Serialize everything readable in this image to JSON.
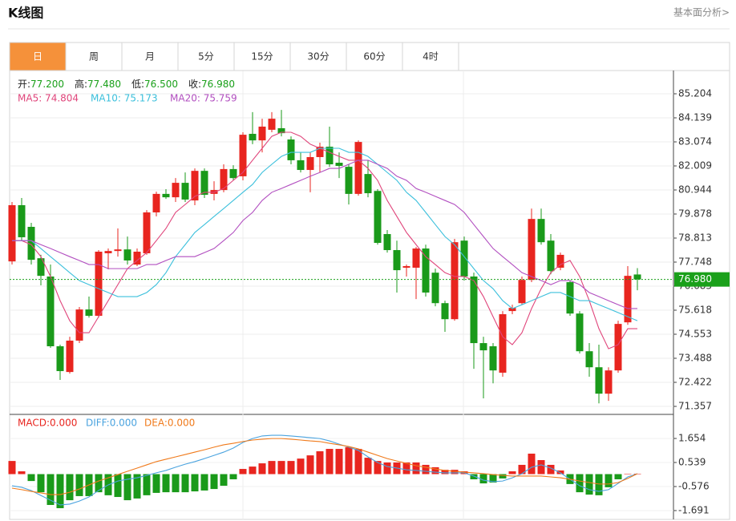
{
  "header": {
    "title": "K线图",
    "link": "基本面分析>"
  },
  "tabs": [
    "日",
    "周",
    "月",
    "5分",
    "15分",
    "30分",
    "60分",
    "4时"
  ],
  "active_tab": 0,
  "chart_data": [
    {
      "type": "candlestick",
      "info": [
        {
          "label": "开:",
          "value": "77.200"
        },
        {
          "label": "高:",
          "value": "77.480"
        },
        {
          "label": "低:",
          "value": "76.500"
        },
        {
          "label": "收:",
          "value": "76.980"
        }
      ],
      "up_color": "#e8251f",
      "down_color": "#1a9a1a",
      "open": [
        77.78,
        80.27,
        79.31,
        77.92,
        77.11,
        74.02,
        72.88,
        74.27,
        75.65,
        75.37,
        78.14,
        78.24,
        78.31,
        77.64,
        78.14,
        79.95,
        80.77,
        80.62,
        81.26,
        80.48,
        81.79,
        80.77,
        80.94,
        81.87,
        81.55,
        83.43,
        83.14,
        83.61,
        83.68,
        83.18,
        82.26,
        81.83,
        82.4,
        82.86,
        82.15,
        81.97,
        80.77,
        81.65,
        80.9,
        78.99,
        78.28,
        77.5,
        77.5,
        78.35,
        77.28,
        75.93,
        75.22,
        78.7,
        77.11,
        74.16,
        74.02,
        72.85,
        75.58,
        75.93,
        76.96,
        79.66,
        78.7,
        77.5,
        76.86,
        75.47,
        73.8,
        73.09,
        71.92,
        72.95,
        75.08,
        77.2
      ],
      "high": [
        80.41,
        80.59,
        79.49,
        78.07,
        77.64,
        74.09,
        74.44,
        75.76,
        76.22,
        78.28,
        78.35,
        79.24,
        78.88,
        78.35,
        80.05,
        80.87,
        80.98,
        81.47,
        81.72,
        81.9,
        81.9,
        81.33,
        82.08,
        82.04,
        83.5,
        84.39,
        84.1,
        84.39,
        84.49,
        83.32,
        82.61,
        82.61,
        83.04,
        83.75,
        82.61,
        82.08,
        83.14,
        82.26,
        80.98,
        79.17,
        78.7,
        77.64,
        78.42,
        78.52,
        77.46,
        76.04,
        78.78,
        78.88,
        77.28,
        74.44,
        74.16,
        75.58,
        75.86,
        77.11,
        80.12,
        80.12,
        78.99,
        78.17,
        76.93,
        75.58,
        74.16,
        74.09,
        73.09,
        75.15,
        77.57,
        77.48
      ],
      "low": [
        77.64,
        78.7,
        77.64,
        76.72,
        73.95,
        72.53,
        72.81,
        74.16,
        75.29,
        75.29,
        77.43,
        77.99,
        77.64,
        77.57,
        78.07,
        79.77,
        80.55,
        80.41,
        80.41,
        80.27,
        80.59,
        80.48,
        80.84,
        81.37,
        81.37,
        82.97,
        82.61,
        83.5,
        83.32,
        82.08,
        81.72,
        80.84,
        81.72,
        81.97,
        81.47,
        80.3,
        80.69,
        80.62,
        78.52,
        78.17,
        76.4,
        77.11,
        76.11,
        76.22,
        75.79,
        74.66,
        75.15,
        76.93,
        73.02,
        71.71,
        72.38,
        72.67,
        75.44,
        75.86,
        76.86,
        78.52,
        77.21,
        77.39,
        75.37,
        73.7,
        72.67,
        71.49,
        71.6,
        72.85,
        74.97,
        76.5
      ],
      "close": [
        80.27,
        78.85,
        77.85,
        77.14,
        74.02,
        72.92,
        74.27,
        75.65,
        75.37,
        78.21,
        78.24,
        78.31,
        77.82,
        78.21,
        79.95,
        80.77,
        80.62,
        81.26,
        80.52,
        81.79,
        80.73,
        80.94,
        81.87,
        81.47,
        83.39,
        83.14,
        83.75,
        84.1,
        83.46,
        82.26,
        81.83,
        82.4,
        82.86,
        82.08,
        82.01,
        80.77,
        83.07,
        80.8,
        78.6,
        78.28,
        77.39,
        77.57,
        78.35,
        76.4,
        75.93,
        75.22,
        78.63,
        77.11,
        74.16,
        73.84,
        72.95,
        75.44,
        75.72,
        76.96,
        79.66,
        78.63,
        77.35,
        78.07,
        75.47,
        73.8,
        73.09,
        71.92,
        72.95,
        75.01,
        77.14,
        76.98
      ],
      "ma": [
        {
          "label": "MA5: 74.804",
          "color": "#e0457b",
          "values": [
            78.7,
            78.7,
            78.52,
            77.99,
            77.11,
            76.04,
            75.15,
            74.62,
            74.62,
            75.33,
            76.04,
            76.75,
            77.46,
            77.82,
            78.17,
            78.7,
            79.24,
            79.95,
            80.3,
            80.66,
            80.84,
            80.84,
            81.01,
            81.37,
            81.72,
            82.26,
            82.79,
            83.32,
            83.5,
            83.5,
            83.32,
            82.97,
            82.79,
            82.61,
            82.43,
            82.26,
            82.26,
            81.9,
            81.37,
            80.48,
            79.77,
            79.06,
            78.52,
            77.99,
            77.64,
            77.28,
            77.11,
            77.11,
            76.93,
            76.22,
            75.33,
            74.44,
            74.09,
            74.62,
            75.69,
            76.57,
            77.28,
            77.64,
            77.82,
            77.11,
            76.04,
            74.8,
            73.91,
            74.09,
            74.8,
            74.8
          ]
        },
        {
          "label": "MA10: 75.173",
          "color": "#3cc0dc",
          "values": [
            78.7,
            78.7,
            78.7,
            78.35,
            77.99,
            77.64,
            77.28,
            76.93,
            76.75,
            76.57,
            76.4,
            76.22,
            76.22,
            76.22,
            76.4,
            76.75,
            77.28,
            77.99,
            78.52,
            79.06,
            79.41,
            79.77,
            80.12,
            80.48,
            80.84,
            81.19,
            81.72,
            82.08,
            82.43,
            82.61,
            82.61,
            82.61,
            82.79,
            82.79,
            82.79,
            82.61,
            82.61,
            82.43,
            82.08,
            81.72,
            81.37,
            80.84,
            80.48,
            79.95,
            79.41,
            78.88,
            78.52,
            77.99,
            77.46,
            76.93,
            76.57,
            76.04,
            75.69,
            75.86,
            76.04,
            76.22,
            76.4,
            76.4,
            76.22,
            76.04,
            76.04,
            75.86,
            75.69,
            75.51,
            75.33,
            75.15
          ]
        },
        {
          "label": "MA20: 75.759",
          "color": "#b24fc0",
          "values": [
            78.7,
            78.7,
            78.7,
            78.52,
            78.35,
            78.17,
            77.99,
            77.82,
            77.64,
            77.64,
            77.46,
            77.46,
            77.46,
            77.46,
            77.64,
            77.64,
            77.82,
            77.99,
            77.99,
            77.99,
            78.17,
            78.35,
            78.7,
            79.06,
            79.59,
            79.95,
            80.48,
            80.84,
            81.01,
            81.19,
            81.37,
            81.55,
            81.72,
            81.9,
            81.9,
            82.08,
            82.26,
            82.26,
            82.08,
            81.9,
            81.55,
            81.37,
            81.01,
            80.84,
            80.66,
            80.48,
            80.3,
            79.95,
            79.41,
            78.88,
            78.35,
            77.99,
            77.64,
            77.28,
            77.11,
            76.93,
            76.75,
            76.93,
            76.93,
            76.75,
            76.4,
            76.22,
            76.04,
            75.86,
            75.69,
            75.69
          ]
        }
      ],
      "last_price": {
        "value": 76.98,
        "label": "76.980"
      },
      "last_price_color": "#1aa01a",
      "ylim": [
        71.002,
        86.163
      ],
      "yticks": [
        85.204,
        84.139,
        83.074,
        82.009,
        80.944,
        79.878,
        78.813,
        77.748,
        76.683,
        75.618,
        74.553,
        73.488,
        72.422,
        71.357
      ],
      "grid": true
    },
    {
      "type": "macd",
      "histogram": {
        "label": "MACD:0.000",
        "color": "#e8251f",
        "up_color": "#e8251f",
        "down_color": "#1a9a1a",
        "values": [
          0.61,
          0.13,
          -0.32,
          -0.84,
          -1.43,
          -1.58,
          -1.21,
          -1.02,
          -1.02,
          -0.84,
          -0.98,
          -1.06,
          -1.21,
          -1.13,
          -0.98,
          -0.87,
          -0.84,
          -0.84,
          -0.84,
          -0.8,
          -0.76,
          -0.69,
          -0.54,
          -0.24,
          0.24,
          0.35,
          0.5,
          0.61,
          0.61,
          0.61,
          0.72,
          0.87,
          1.06,
          1.17,
          1.17,
          1.25,
          1.17,
          0.76,
          0.61,
          0.54,
          0.54,
          0.54,
          0.54,
          0.43,
          0.32,
          0.2,
          0.2,
          0.13,
          -0.24,
          -0.43,
          -0.39,
          -0.2,
          0.13,
          0.43,
          0.95,
          0.65,
          0.43,
          0.17,
          -0.46,
          -0.84,
          -0.95,
          -0.98,
          -0.61,
          -0.24,
          0.02,
          0.02
        ]
      },
      "series": [
        {
          "label": "DIFF:0.000",
          "color": "#4aa3df",
          "values": [
            -0.54,
            -0.61,
            -0.76,
            -0.99,
            -1.21,
            -1.43,
            -1.39,
            -1.25,
            -1.06,
            -0.76,
            -0.5,
            -0.32,
            -0.24,
            -0.17,
            -0.06,
            0.06,
            0.17,
            0.32,
            0.46,
            0.58,
            0.72,
            0.87,
            1.02,
            1.21,
            1.47,
            1.65,
            1.77,
            1.8,
            1.8,
            1.77,
            1.73,
            1.69,
            1.65,
            1.54,
            1.39,
            1.25,
            1.1,
            0.8,
            0.54,
            0.35,
            0.28,
            0.2,
            0.17,
            0.13,
            0.09,
            0.06,
            0.06,
            0.06,
            -0.09,
            -0.28,
            -0.35,
            -0.32,
            -0.17,
            0.02,
            0.32,
            0.43,
            0.28,
            0.06,
            -0.24,
            -0.54,
            -0.72,
            -0.8,
            -0.72,
            -0.43,
            -0.13,
            0.02
          ]
        },
        {
          "label": "DEA:0.000",
          "color": "#f07a1b",
          "values": [
            -0.65,
            -0.72,
            -0.8,
            -0.87,
            -0.95,
            -0.95,
            -0.84,
            -0.69,
            -0.5,
            -0.32,
            -0.17,
            -0.02,
            0.13,
            0.28,
            0.43,
            0.58,
            0.69,
            0.8,
            0.91,
            1.02,
            1.13,
            1.25,
            1.36,
            1.43,
            1.51,
            1.58,
            1.62,
            1.65,
            1.65,
            1.62,
            1.58,
            1.54,
            1.51,
            1.43,
            1.36,
            1.28,
            1.17,
            1.02,
            0.87,
            0.72,
            0.61,
            0.5,
            0.39,
            0.32,
            0.24,
            0.17,
            0.13,
            0.09,
            0.06,
            0.02,
            -0.02,
            -0.06,
            -0.09,
            -0.09,
            -0.09,
            -0.09,
            -0.13,
            -0.17,
            -0.24,
            -0.32,
            -0.39,
            -0.46,
            -0.46,
            -0.39,
            -0.2,
            0.02
          ]
        }
      ],
      "ylim": [
        -2.1,
        2.77
      ],
      "yticks": [
        1.654,
        0.539,
        -0.576,
        -1.691
      ],
      "grid": true
    }
  ]
}
